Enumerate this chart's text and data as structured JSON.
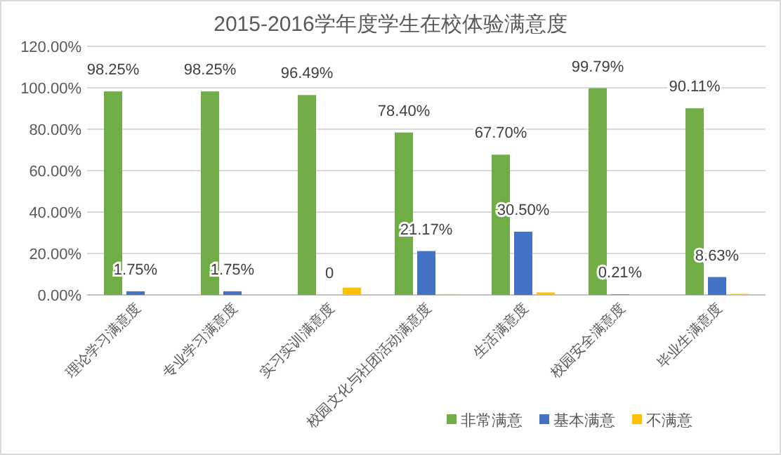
{
  "chart_data": {
    "type": "bar",
    "title": "2015-2016学年度学生在校体验满意度",
    "categories": [
      "理论学习满意度",
      "专业学习满意度",
      "实习实训满意度",
      "校园文化与社团活动满意度",
      "生活满意度",
      "校园安全满意度",
      "毕业生满意度"
    ],
    "series": [
      {
        "name": "非常满意",
        "color": "#70ad47",
        "values": [
          98.25,
          98.25,
          96.49,
          78.4,
          67.7,
          99.79,
          90.11
        ],
        "value_labels": [
          "98.25%",
          "98.25%",
          "96.49%",
          "78.40%",
          "67.70%",
          "99.79%",
          "90.11%"
        ]
      },
      {
        "name": "基本满意",
        "color": "#4472c4",
        "values": [
          1.75,
          1.75,
          0,
          21.17,
          30.5,
          0.21,
          8.63
        ],
        "value_labels": [
          "1.75%",
          "1.75%",
          "0",
          "21.17%",
          "30.50%",
          "0.21%",
          "8.63%"
        ]
      },
      {
        "name": "不满意",
        "color": "#ffc000",
        "values": [
          0,
          0,
          3.5,
          0.4,
          1.2,
          0,
          0.5
        ]
      }
    ],
    "ylim": [
      0,
      120
    ],
    "yticks": [
      {
        "value": 0,
        "label": "0.00%"
      },
      {
        "value": 20,
        "label": "20.00%"
      },
      {
        "value": 40,
        "label": "40.00%"
      },
      {
        "value": 60,
        "label": "60.00%"
      },
      {
        "value": 80,
        "label": "80.00%"
      },
      {
        "value": 100,
        "label": "100.00%"
      },
      {
        "value": 120,
        "label": "120.00%"
      }
    ],
    "grid": "y",
    "legend": "bottom right"
  }
}
